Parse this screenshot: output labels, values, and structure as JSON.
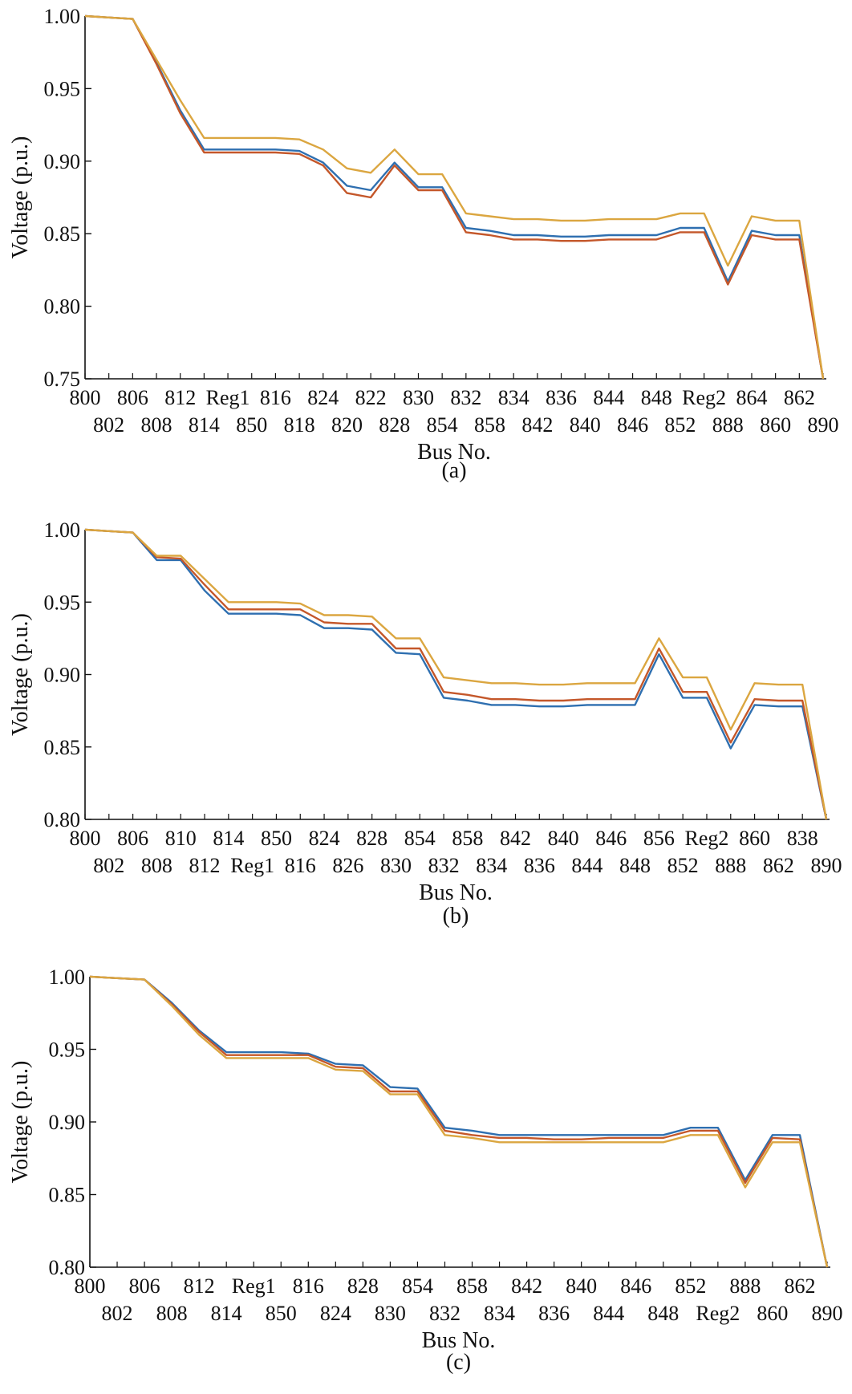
{
  "figure": {
    "y_axis_title": "Voltage (p.u.)",
    "x_axis_title": "Bus No."
  },
  "chart_data": [
    {
      "type": "line",
      "caption": "(a)",
      "xlabel": "Bus No.",
      "ylabel": "Voltage (p.u.)",
      "ylim": [
        0.75,
        1.0
      ],
      "yticks": [
        "1.00",
        "0.95",
        "0.90",
        "0.85",
        "0.80",
        "0.75"
      ],
      "categories": [
        "800",
        "802",
        "806",
        "808",
        "812",
        "814",
        "Reg1",
        "850",
        "816",
        "818",
        "824",
        "820",
        "822",
        "828",
        "830",
        "854",
        "832",
        "858",
        "834",
        "842",
        "836",
        "840",
        "844",
        "846",
        "848",
        "852",
        "Reg2",
        "888",
        "864",
        "860",
        "862",
        "890"
      ],
      "grid": false,
      "series": [
        {
          "color": "#2e6fb0",
          "values": [
            1.0,
            0.999,
            0.998,
            0.968,
            0.935,
            0.908,
            0.908,
            0.908,
            0.908,
            0.907,
            0.899,
            0.883,
            0.88,
            0.899,
            0.882,
            0.882,
            0.854,
            0.852,
            0.849,
            0.849,
            0.848,
            0.848,
            0.849,
            0.849,
            0.849,
            0.854,
            0.854,
            0.817,
            0.852,
            0.849,
            0.849,
            0.75
          ]
        },
        {
          "color": "#c4572a",
          "values": [
            1.0,
            0.999,
            0.998,
            0.967,
            0.933,
            0.906,
            0.906,
            0.906,
            0.906,
            0.905,
            0.897,
            0.878,
            0.875,
            0.897,
            0.88,
            0.88,
            0.851,
            0.849,
            0.846,
            0.846,
            0.845,
            0.845,
            0.846,
            0.846,
            0.846,
            0.851,
            0.851,
            0.815,
            0.849,
            0.846,
            0.846,
            0.75
          ]
        },
        {
          "color": "#dba640",
          "values": [
            1.0,
            0.999,
            0.998,
            0.97,
            0.942,
            0.916,
            0.916,
            0.916,
            0.916,
            0.915,
            0.908,
            0.895,
            0.892,
            0.908,
            0.891,
            0.891,
            0.864,
            0.862,
            0.86,
            0.86,
            0.859,
            0.859,
            0.86,
            0.86,
            0.86,
            0.864,
            0.864,
            0.828,
            0.862,
            0.859,
            0.859,
            0.75
          ]
        }
      ]
    },
    {
      "type": "line",
      "caption": "(b)",
      "xlabel": "Bus No.",
      "ylabel": "Voltage (p.u.)",
      "ylim": [
        0.8,
        1.0
      ],
      "yticks": [
        "1.00",
        "0.95",
        "0.90",
        "0.85",
        "0.80"
      ],
      "categories": [
        "800",
        "802",
        "806",
        "808",
        "810",
        "812",
        "814",
        "Reg1",
        "850",
        "816",
        "824",
        "826",
        "828",
        "830",
        "854",
        "832",
        "858",
        "834",
        "842",
        "836",
        "840",
        "844",
        "846",
        "848",
        "856",
        "852",
        "Reg2",
        "888",
        "860",
        "862",
        "838",
        "890"
      ],
      "grid": false,
      "series": [
        {
          "color": "#2e6fb0",
          "values": [
            1.0,
            0.999,
            0.998,
            0.979,
            0.979,
            0.958,
            0.942,
            0.942,
            0.942,
            0.941,
            0.932,
            0.932,
            0.931,
            0.915,
            0.914,
            0.884,
            0.882,
            0.879,
            0.879,
            0.878,
            0.878,
            0.879,
            0.879,
            0.879,
            0.914,
            0.884,
            0.884,
            0.849,
            0.879,
            0.878,
            0.878,
            0.8
          ]
        },
        {
          "color": "#c4572a",
          "values": [
            1.0,
            0.999,
            0.998,
            0.981,
            0.98,
            0.962,
            0.945,
            0.945,
            0.945,
            0.945,
            0.936,
            0.935,
            0.935,
            0.918,
            0.918,
            0.888,
            0.886,
            0.883,
            0.883,
            0.882,
            0.882,
            0.883,
            0.883,
            0.883,
            0.918,
            0.888,
            0.888,
            0.853,
            0.883,
            0.882,
            0.882,
            0.8
          ]
        },
        {
          "color": "#dba640",
          "values": [
            1.0,
            0.999,
            0.998,
            0.982,
            0.982,
            0.966,
            0.95,
            0.95,
            0.95,
            0.949,
            0.941,
            0.941,
            0.94,
            0.925,
            0.925,
            0.898,
            0.896,
            0.894,
            0.894,
            0.893,
            0.893,
            0.894,
            0.894,
            0.894,
            0.925,
            0.898,
            0.898,
            0.862,
            0.894,
            0.893,
            0.893,
            0.8
          ]
        }
      ]
    },
    {
      "type": "line",
      "caption": "(c)",
      "xlabel": "Bus No.",
      "ylabel": "Voltage (p.u.)",
      "ylim": [
        0.8,
        1.0
      ],
      "yticks": [
        "1.00",
        "0.95",
        "0.90",
        "0.85",
        "0.80"
      ],
      "categories": [
        "800",
        "802",
        "806",
        "808",
        "812",
        "814",
        "Reg1",
        "850",
        "816",
        "824",
        "828",
        "830",
        "854",
        "832",
        "858",
        "834",
        "842",
        "836",
        "840",
        "844",
        "846",
        "848",
        "852",
        "Reg2",
        "888",
        "860",
        "862",
        "890"
      ],
      "grid": false,
      "series": [
        {
          "color": "#2e6fb0",
          "values": [
            1.0,
            0.999,
            0.998,
            0.982,
            0.963,
            0.948,
            0.948,
            0.948,
            0.947,
            0.94,
            0.939,
            0.924,
            0.923,
            0.896,
            0.894,
            0.891,
            0.891,
            0.891,
            0.891,
            0.891,
            0.891,
            0.891,
            0.896,
            0.896,
            0.86,
            0.891,
            0.891,
            0.8
          ]
        },
        {
          "color": "#c4572a",
          "values": [
            1.0,
            0.999,
            0.998,
            0.981,
            0.962,
            0.946,
            0.946,
            0.946,
            0.946,
            0.938,
            0.937,
            0.921,
            0.921,
            0.894,
            0.891,
            0.889,
            0.889,
            0.888,
            0.888,
            0.889,
            0.889,
            0.889,
            0.894,
            0.894,
            0.858,
            0.889,
            0.888,
            0.8
          ]
        },
        {
          "color": "#dba640",
          "values": [
            1.0,
            0.999,
            0.998,
            0.98,
            0.96,
            0.944,
            0.944,
            0.944,
            0.944,
            0.936,
            0.935,
            0.919,
            0.919,
            0.891,
            0.889,
            0.886,
            0.886,
            0.886,
            0.886,
            0.886,
            0.886,
            0.886,
            0.891,
            0.891,
            0.855,
            0.886,
            0.886,
            0.8
          ]
        }
      ]
    }
  ]
}
